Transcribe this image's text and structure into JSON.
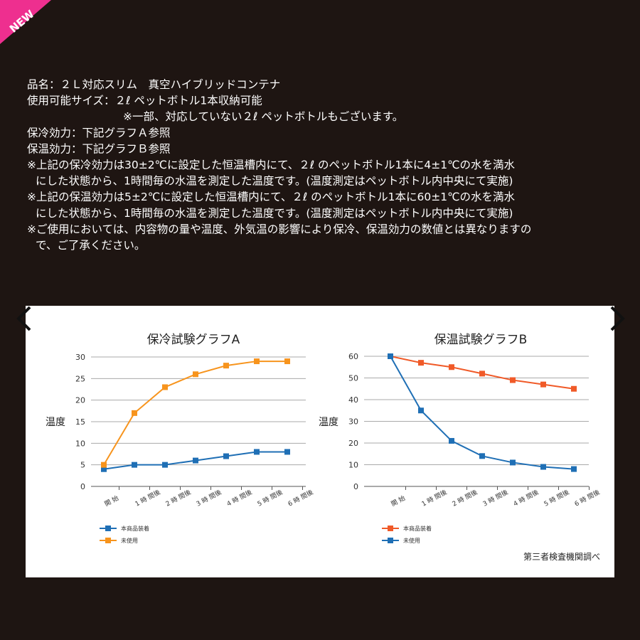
{
  "badge": "NEW",
  "spec_lines": [
    "品名：２Ｌ対応スリム　真空ハイブリッドコンテナ",
    "使用可能サイズ：２ℓ ペットボトル1本収納可能",
    "※一部、対応していない２ℓ ペットボトルもございます。",
    "保冷効力：下記グラフＡ参照",
    "保温効力：下記グラフＢ参照",
    "※上記の保冷効力は30±2℃に設定した恒温槽内にて、２ℓ のペットボトル1本に4±1℃の水を満水",
    "にした状態から、1時間毎の水温を測定した温度です。(温度測定はペットボトル内中央にて実施)",
    "※上記の保温効力は5±2℃に設定した恒温槽内にて、２ℓ のペットボトル1本に60±1℃の水を満水",
    "にした状態から、1時間毎の水温を測定した温度です。(温度測定はペットボトル内中央にて実施)",
    "※ご使用においては、内容物の量や温度、外気温の影響により保冷、保温効力の数値とは異なりますの",
    "で、ご了承ください。"
  ],
  "chart_data": [
    {
      "type": "line",
      "title": "保冷試験グラフA",
      "y_label": "温度",
      "categories": [
        "開 始",
        "1 時 間後",
        "2 時 間後",
        "3 時 間後",
        "4 時 間後",
        "5 時 間後",
        "6 時 間後"
      ],
      "series": [
        {
          "name": "本商品装着",
          "color": "#1f6fb5",
          "values": [
            4,
            5,
            5,
            6,
            7,
            8,
            8
          ]
        },
        {
          "name": "未使用",
          "color": "#f7941d",
          "values": [
            5,
            17,
            23,
            26,
            28,
            29,
            29
          ]
        }
      ],
      "ylim": [
        0,
        30
      ],
      "yticks": [
        0,
        5,
        10,
        15,
        20,
        25,
        30
      ],
      "grid": true
    },
    {
      "type": "line",
      "title": "保温試験グラフB",
      "y_label": "温度",
      "categories": [
        "開 始",
        "1 時 間後",
        "2 時 間後",
        "3 時 間後",
        "4 時 間後",
        "5 時 間後",
        "6 時 間後"
      ],
      "series": [
        {
          "name": "本商品装着",
          "color": "#f05a28",
          "values": [
            60,
            57,
            55,
            52,
            49,
            47,
            45
          ]
        },
        {
          "name": "未使用",
          "color": "#1f6fb5",
          "values": [
            60,
            35,
            21,
            14,
            11,
            9,
            8
          ]
        }
      ],
      "ylim": [
        0,
        60
      ],
      "yticks": [
        0,
        10,
        20,
        30,
        40,
        50,
        60
      ],
      "grid": true
    }
  ],
  "source_note": "第三者検査機関調べ"
}
